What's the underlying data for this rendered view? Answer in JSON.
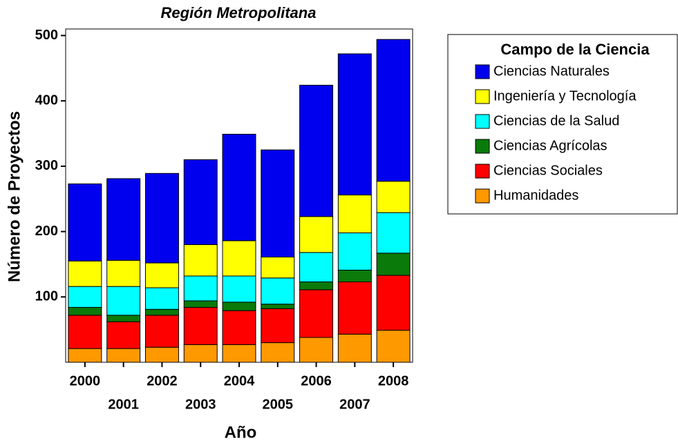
{
  "chart_data": {
    "type": "stacked_bar",
    "title": "Región Metropolitana",
    "x_label": "Año",
    "y_label": "Número de Proyectos",
    "legend_title": "Campo de la Ciencia",
    "categories": [
      "2000",
      "2001",
      "2002",
      "2003",
      "2004",
      "2005",
      "2006",
      "2007",
      "2008"
    ],
    "series": [
      {
        "name": "Humanidades",
        "color": "#ff9900",
        "values": [
          21,
          21,
          23,
          27,
          27,
          30,
          38,
          43,
          49
        ]
      },
      {
        "name": "Ciencias Sociales",
        "color": "#ff0000",
        "values": [
          51,
          41,
          49,
          57,
          52,
          52,
          73,
          80,
          84
        ]
      },
      {
        "name": "Ciencias Agrícolas",
        "color": "#0a7a0a",
        "values": [
          12,
          10,
          9,
          10,
          13,
          7,
          12,
          18,
          34
        ]
      },
      {
        "name": "Ciencias de la Salud",
        "color": "#00ffff",
        "values": [
          32,
          44,
          33,
          38,
          40,
          40,
          45,
          57,
          62
        ]
      },
      {
        "name": "Ingeniería y Tecnología",
        "color": "#ffff00",
        "values": [
          39,
          40,
          38,
          48,
          54,
          32,
          55,
          58,
          48
        ]
      },
      {
        "name": "Ciencias Naturales",
        "color": "#0000ee",
        "values": [
          118,
          125,
          137,
          130,
          163,
          164,
          201,
          216,
          217
        ]
      }
    ],
    "ylim": [
      0,
      510
    ],
    "yticks": [
      100,
      200,
      300,
      400,
      500
    ],
    "legend": "right"
  }
}
